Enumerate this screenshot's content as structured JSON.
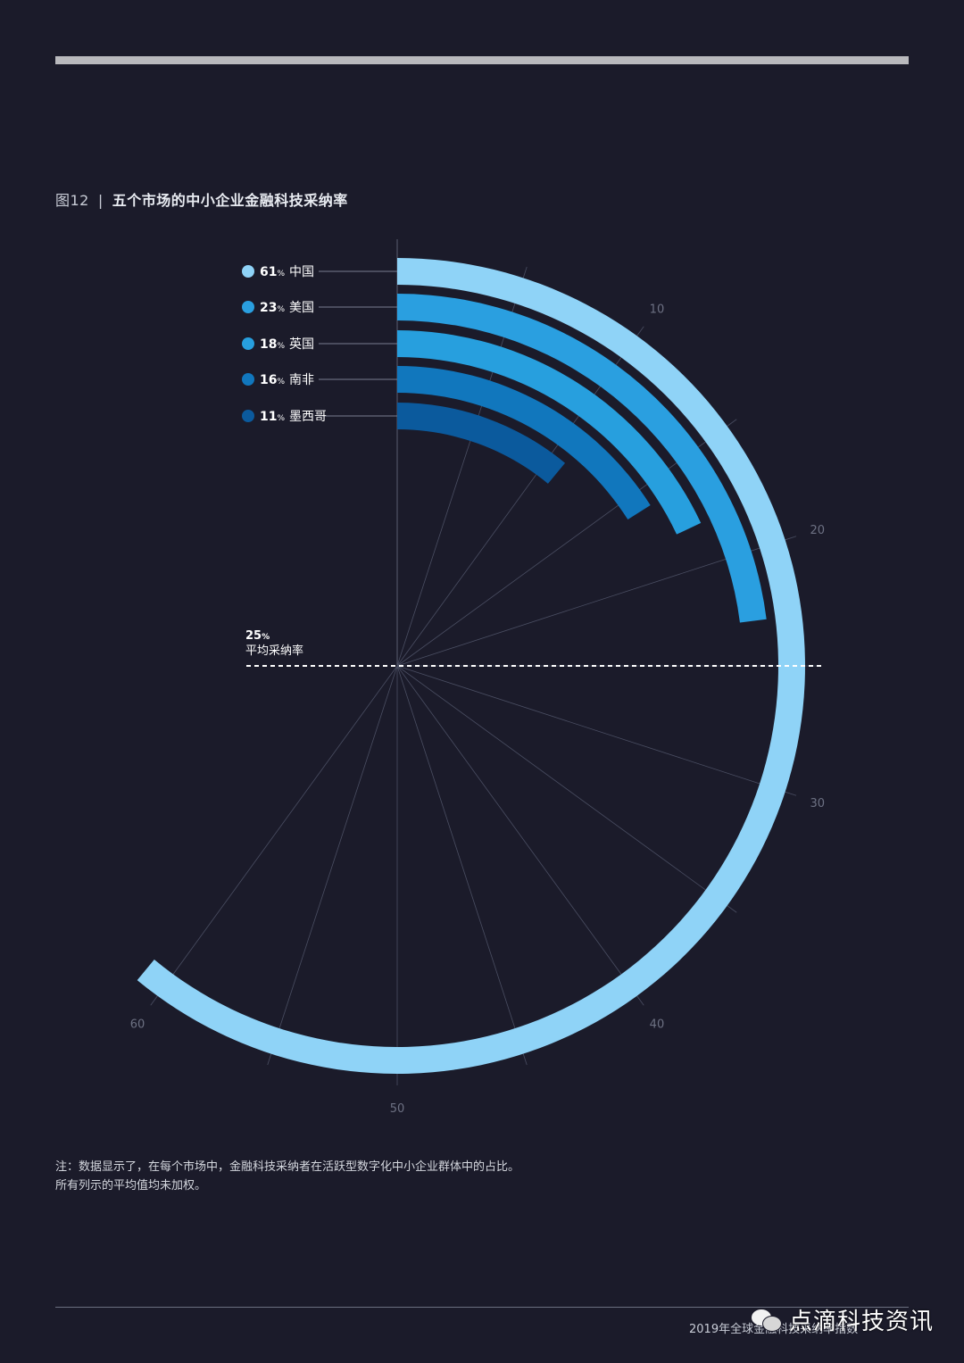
{
  "header": {
    "figure_number": "图12",
    "separator": "|",
    "title": "五个市场的中小企业金融科技采纳率"
  },
  "chart_data": {
    "type": "radial-bar",
    "title": "五个市场的中小企业金融科技采纳率",
    "scale_ticks": [
      10,
      20,
      30,
      40,
      50,
      60
    ],
    "scale_max": 100,
    "series": [
      {
        "name": "中国",
        "value": 61,
        "color": "#8fd3f7"
      },
      {
        "name": "美国",
        "value": 23,
        "color": "#2a9fe0"
      },
      {
        "name": "英国",
        "value": 18,
        "color": "#279fde"
      },
      {
        "name": "南非",
        "value": 16,
        "color": "#1177bd"
      },
      {
        "name": "墨西哥",
        "value": 11,
        "color": "#0b5a9d"
      }
    ],
    "average": {
      "value": 25,
      "value_label": "25%",
      "label": "平均采纳率"
    }
  },
  "note": {
    "line1": "注：数据显示了，在每个市场中，金融科技采纳者在活跃型数字化中小企业群体中的占比。",
    "line2": "所有列示的平均值均未加权。"
  },
  "footer": {
    "report_title": "2019年全球金融科技采纳率指数",
    "brand": "点滴科技资讯"
  }
}
